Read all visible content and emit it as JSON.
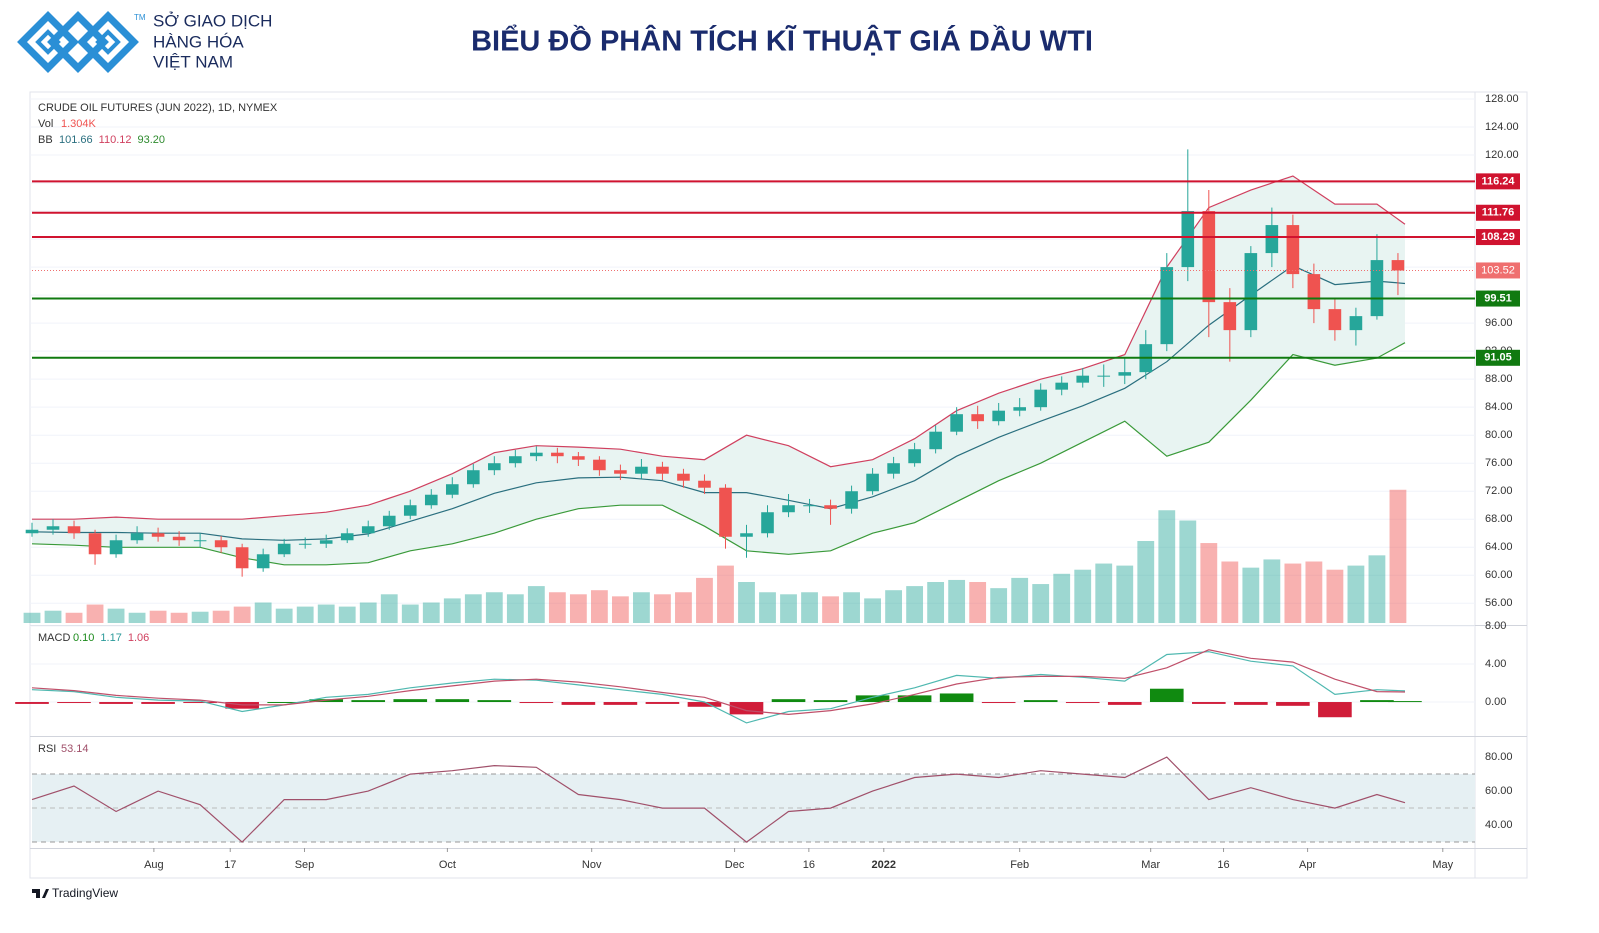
{
  "header": {
    "logo_lines": [
      "SỞ GIAO DỊCH",
      "HÀNG HÓA",
      "VIỆT NAM"
    ],
    "tm": "TM",
    "title": "BIỂU ĐỒ PHÂN TÍCH KĨ THUẬT GIÁ DẦU WTI"
  },
  "footer": {
    "brand": "TradingView"
  },
  "chart_data": [
    {
      "type": "candlestick",
      "title": "CRUDE OIL FUTURES (JUN 2022), 1D, NYMEX",
      "up_color": "#26a69a",
      "down_color": "#ef5350",
      "x": [
        0,
        3,
        6,
        9,
        12,
        15,
        18,
        21,
        24,
        27,
        30,
        33,
        36,
        39,
        42,
        45,
        48,
        51,
        54,
        57,
        60,
        63,
        66,
        69,
        72,
        75,
        78,
        81,
        84,
        87,
        90,
        93,
        96,
        99,
        102,
        105,
        108,
        111,
        114,
        117,
        120,
        123,
        126,
        129,
        132,
        135,
        138,
        141,
        144,
        147,
        150,
        153,
        156,
        159,
        162,
        165,
        168,
        171,
        174,
        177,
        180,
        183,
        186,
        189,
        192,
        195
      ],
      "open": [
        66,
        66.5,
        67,
        66,
        63,
        65,
        66,
        65.5,
        65,
        65,
        64,
        61,
        63,
        64.5,
        64.5,
        65,
        66,
        67,
        68.5,
        70,
        71.5,
        73,
        75,
        76,
        77,
        77.5,
        77,
        76.5,
        75,
        74.5,
        75.5,
        74.5,
        73.5,
        72.5,
        65.5,
        66,
        69,
        70,
        70,
        69.5,
        72,
        74.5,
        76,
        78,
        80.5,
        83,
        82,
        83.5,
        84,
        86.5,
        87.5,
        88.5,
        88.5,
        89,
        93,
        104,
        112,
        99,
        95,
        106,
        110,
        103,
        98,
        95,
        97,
        105
      ],
      "high": [
        67.5,
        68,
        67.8,
        66.5,
        65.8,
        67,
        66.8,
        66.3,
        66,
        65.6,
        64.5,
        63.8,
        65.2,
        65.4,
        65.8,
        66.7,
        67.8,
        69.2,
        70.8,
        72.3,
        74,
        75.9,
        77,
        77.9,
        78.4,
        78.2,
        77.6,
        77,
        75.8,
        76.6,
        76.2,
        75.2,
        74.4,
        73,
        67.2,
        70,
        71.6,
        70.9,
        70.8,
        72.8,
        75.3,
        76.9,
        78.9,
        81.4,
        84,
        84.2,
        84.6,
        85.3,
        87.4,
        88.4,
        89.6,
        90.1,
        91,
        95,
        106,
        120.8,
        115,
        101,
        107,
        112.5,
        111.5,
        104.5,
        99.5,
        98.2,
        108.7,
        106
      ],
      "low": [
        65.5,
        65.8,
        65.2,
        61.5,
        62.5,
        64.5,
        64.8,
        64.2,
        64,
        63.2,
        59.8,
        60.5,
        62.6,
        63.8,
        63.9,
        64.6,
        65.5,
        66.5,
        68,
        69.5,
        71,
        72.5,
        74.3,
        75.4,
        76.3,
        76,
        75.6,
        74.2,
        73.6,
        73.8,
        73.6,
        72.5,
        71.6,
        63.8,
        62.5,
        65.4,
        68.3,
        68.9,
        67.2,
        68.8,
        71.5,
        73.8,
        75.5,
        77.4,
        80,
        80.9,
        81.4,
        82.7,
        83.5,
        85.7,
        86.8,
        86.9,
        87.3,
        88,
        92,
        102,
        94,
        90.5,
        94,
        104,
        101,
        96,
        93.5,
        92.8,
        96.5,
        100
      ],
      "close": [
        66.5,
        67,
        66,
        63,
        65,
        66,
        65.5,
        65,
        65,
        64,
        61,
        63,
        64.5,
        64.5,
        65,
        66,
        67,
        68.5,
        70,
        71.5,
        73,
        75,
        76,
        77,
        77.5,
        77,
        76.5,
        75,
        74.5,
        75.5,
        74.5,
        73.5,
        72.5,
        65.5,
        66,
        69,
        70,
        70,
        69.5,
        72,
        74.5,
        76,
        78,
        80.5,
        83,
        82,
        83.5,
        84,
        86.5,
        87.5,
        88.5,
        88.5,
        89,
        93,
        104,
        112,
        99,
        95,
        106,
        110,
        103,
        98,
        95,
        97,
        105,
        103.52
      ],
      "volume_name": "Vol",
      "volume_label": "1.304K",
      "volume_lim": [
        0,
        520
      ],
      "volume": [
        10,
        12,
        10,
        18,
        14,
        10,
        12,
        10,
        11,
        12,
        16,
        20,
        14,
        16,
        18,
        16,
        20,
        28,
        18,
        20,
        24,
        28,
        30,
        28,
        36,
        30,
        28,
        32,
        26,
        30,
        28,
        30,
        44,
        56,
        40,
        30,
        28,
        30,
        26,
        30,
        24,
        32,
        36,
        40,
        42,
        40,
        34,
        44,
        38,
        48,
        52,
        58,
        56,
        80,
        110,
        100,
        78,
        60,
        54,
        62,
        58,
        60,
        52,
        56,
        66,
        130
      ],
      "bb": {
        "label": "BB",
        "readout": [
          101.66,
          110.12,
          93.2
        ],
        "readout_labels": [
          "101.66",
          "110.12",
          "93.20"
        ],
        "readout_colors": [
          "#2a6f7f",
          "#d0405f",
          "#2e8b2e"
        ],
        "x": [
          0,
          6,
          12,
          18,
          24,
          30,
          36,
          42,
          48,
          54,
          60,
          66,
          72,
          78,
          84,
          90,
          96,
          102,
          108,
          114,
          120,
          126,
          132,
          138,
          144,
          150,
          156,
          162,
          168,
          174,
          180,
          186,
          192,
          196
        ],
        "basis": [
          66.2,
          66.1,
          66.1,
          66,
          66,
          65.2,
          65,
          65.2,
          65.9,
          67.7,
          69.5,
          71.7,
          73.2,
          73.9,
          74,
          73.5,
          71.8,
          71.8,
          70.7,
          69.5,
          71.2,
          73.5,
          77,
          79.7,
          82,
          84.2,
          86.7,
          90.5,
          95.7,
          100,
          104.2,
          101.5,
          102,
          101.66
        ],
        "upper": [
          68,
          68,
          68.3,
          68,
          68,
          68,
          68.5,
          69,
          70,
          72,
          74.5,
          77.5,
          78.5,
          78.3,
          78,
          77,
          76.5,
          80,
          78.5,
          75.5,
          76.5,
          79.5,
          83.5,
          86,
          88,
          89.5,
          91.5,
          104,
          112.5,
          115,
          117,
          113,
          113,
          110.12
        ],
        "lower": [
          64.5,
          64.3,
          64,
          64,
          64,
          62.5,
          61.5,
          61.5,
          61.8,
          63.5,
          64.5,
          66,
          68,
          69.5,
          70,
          70,
          67,
          63.5,
          63,
          63.5,
          66,
          67.5,
          70.5,
          73.5,
          76,
          79,
          82,
          77,
          79,
          85,
          91.5,
          90,
          91,
          93.2
        ],
        "colors": [
          "#2a6f7f",
          "#d0405f",
          "#3a9a3a"
        ],
        "fill": "#e8f4f2"
      },
      "levels": [
        {
          "value": 116.24,
          "color": "#d0132f"
        },
        {
          "value": 111.76,
          "color": "#d0132f"
        },
        {
          "value": 108.29,
          "color": "#d0132f"
        },
        {
          "value": 99.51,
          "color": "#107a10"
        },
        {
          "value": 91.05,
          "color": "#107a10"
        }
      ],
      "last": {
        "value": 103.52,
        "color": "#ef6f6f"
      },
      "xlim": [
        0,
        206
      ],
      "xticks": [
        {
          "value": 17.4,
          "label": "Aug"
        },
        {
          "value": 28.3,
          "label": "17"
        },
        {
          "value": 38.9,
          "label": "Sep"
        },
        {
          "value": 59.3,
          "label": "Oct"
        },
        {
          "value": 79.9,
          "label": "Nov"
        },
        {
          "value": 100.3,
          "label": "Dec"
        },
        {
          "value": 110.9,
          "label": "16"
        },
        {
          "value": 121.6,
          "label": "2022"
        },
        {
          "value": 141,
          "label": "Feb"
        },
        {
          "value": 159.7,
          "label": "Mar"
        },
        {
          "value": 170.1,
          "label": "16"
        },
        {
          "value": 182.1,
          "label": "Apr"
        },
        {
          "value": 201.4,
          "label": "May"
        }
      ],
      "ylim": [
        52.9,
        129
      ],
      "yticks": [
        {
          "value": 128,
          "label": "128.00"
        },
        {
          "value": 124,
          "label": "124.00"
        },
        {
          "value": 120,
          "label": "120.00"
        },
        {
          "value": 116,
          "label": "116.00"
        },
        {
          "value": 112,
          "label": "112.00"
        },
        {
          "value": 108,
          "label": "108.00"
        },
        {
          "value": 104,
          "label": "104.00"
        },
        {
          "value": 100,
          "label": "100.00"
        },
        {
          "value": 96,
          "label": "96.00"
        },
        {
          "value": 92,
          "label": "92.00"
        },
        {
          "value": 88,
          "label": "88.00"
        },
        {
          "value": 84,
          "label": "84.00"
        },
        {
          "value": 80,
          "label": "80.00"
        },
        {
          "value": 76,
          "label": "76.00"
        },
        {
          "value": 72,
          "label": "72.00"
        },
        {
          "value": 68,
          "label": "68.00"
        },
        {
          "value": 64,
          "label": "64.00"
        },
        {
          "value": 60,
          "label": "60.00"
        },
        {
          "value": 56,
          "label": "56.00"
        }
      ]
    },
    {
      "type": "macd",
      "title": "MACD",
      "readout": [
        0.1,
        1.17,
        1.06
      ],
      "readout_labels": [
        "0.10",
        "1.17",
        "1.06"
      ],
      "readout_colors": [
        "#1b8a1b",
        "#2a9a9a",
        "#d0405f"
      ],
      "x": [
        0,
        6,
        12,
        18,
        24,
        30,
        36,
        42,
        48,
        54,
        60,
        66,
        72,
        78,
        84,
        90,
        96,
        102,
        108,
        114,
        120,
        126,
        132,
        138,
        144,
        150,
        156,
        162,
        168,
        174,
        180,
        186,
        192,
        196
      ],
      "histogram": [
        -0.2,
        -0.1,
        -0.2,
        -0.2,
        -0.1,
        -0.7,
        0,
        0.3,
        0.2,
        0.3,
        0.3,
        0.2,
        -0.1,
        -0.3,
        -0.3,
        -0.2,
        -0.5,
        -1.3,
        0.3,
        0.2,
        0.7,
        0.7,
        0.9,
        -0.1,
        0.2,
        -0.1,
        -0.3,
        1.4,
        -0.2,
        -0.3,
        -0.4,
        -1.6,
        0.2,
        0.1
      ],
      "macd": [
        1.3,
        1.1,
        0.5,
        0.2,
        0.1,
        -1.0,
        -0.3,
        0.5,
        0.8,
        1.5,
        2.0,
        2.4,
        2.3,
        1.8,
        1.3,
        0.8,
        0.0,
        -2.2,
        -1.0,
        -0.7,
        0.5,
        1.5,
        2.8,
        2.5,
        2.9,
        2.6,
        2.2,
        5.0,
        5.3,
        4.3,
        3.8,
        0.8,
        1.3,
        1.17
      ],
      "signal": [
        1.5,
        1.2,
        0.7,
        0.4,
        0.2,
        -0.3,
        -0.3,
        0.2,
        0.6,
        1.2,
        1.7,
        2.2,
        2.4,
        2.1,
        1.6,
        1.0,
        0.5,
        -0.9,
        -1.3,
        -0.9,
        -0.2,
        0.8,
        1.9,
        2.6,
        2.7,
        2.7,
        2.5,
        3.6,
        5.5,
        4.6,
        4.2,
        2.4,
        1.1,
        1.06
      ],
      "colors": {
        "up": "#108a10",
        "down": "#d01c39",
        "macd": "#4fb8b0",
        "signal": "#c0506a"
      },
      "xlim": [
        0,
        206
      ],
      "ylim": [
        -3.47,
        8
      ],
      "yticks": [
        {
          "value": 8,
          "label": "8.00"
        },
        {
          "value": 4,
          "label": "4.00"
        },
        {
          "value": 0,
          "label": "0.00"
        }
      ]
    },
    {
      "type": "rsi",
      "title": "RSI",
      "readout": 53.14,
      "color": "#a0506a",
      "band": [
        30,
        70
      ],
      "mid": 50,
      "band_fill": "#e6f0f3",
      "x": [
        0,
        6,
        12,
        18,
        24,
        30,
        36,
        42,
        48,
        54,
        60,
        66,
        72,
        78,
        84,
        90,
        96,
        102,
        108,
        114,
        120,
        126,
        132,
        138,
        144,
        150,
        156,
        162,
        168,
        174,
        180,
        186,
        192,
        196
      ],
      "values": [
        55,
        63,
        48,
        60,
        52,
        30,
        55,
        55,
        60,
        70,
        72,
        75,
        74,
        58,
        55,
        50,
        50,
        30,
        48,
        50,
        60,
        68,
        70,
        68,
        72,
        70,
        68,
        80,
        55,
        62,
        55,
        50,
        58,
        53.14
      ],
      "xlim": [
        0,
        206
      ],
      "ylim": [
        26.5,
        91.8
      ],
      "yticks": [
        {
          "value": 80,
          "label": "80.00"
        },
        {
          "value": 60,
          "label": "60.00"
        },
        {
          "value": 40,
          "label": "40.00"
        }
      ]
    }
  ]
}
